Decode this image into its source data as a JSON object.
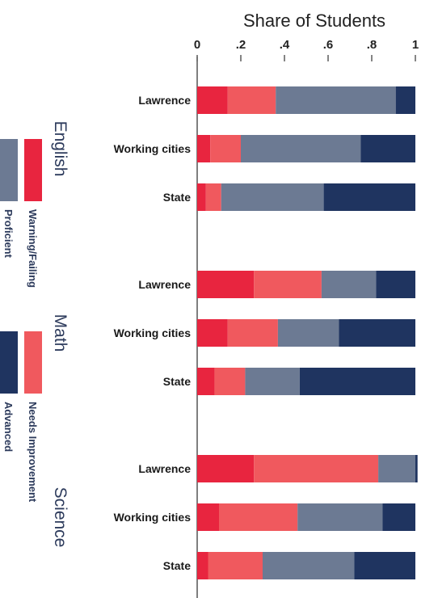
{
  "chart_data": {
    "type": "bar",
    "orientation": "horizontal",
    "stacked": true,
    "xlabel": "Share of Students",
    "xlim": [
      0,
      1
    ],
    "xticks": [
      "0",
      ".2",
      ".4",
      ".6",
      ".8",
      "1"
    ],
    "colors": {
      "Warning/Failing": "#e8253f",
      "Needs Improvement": "#f0595e",
      "Proficient": "#6c7a93",
      "Advanced": "#1f3460"
    },
    "groups": [
      {
        "name": "English",
        "categories": [
          "Lawrence",
          "Working cities",
          "State"
        ],
        "series": [
          {
            "name": "Warning/Failing",
            "values": [
              0.14,
              0.06,
              0.04
            ]
          },
          {
            "name": "Needs Improvement",
            "values": [
              0.22,
              0.14,
              0.07
            ]
          },
          {
            "name": "Proficient",
            "values": [
              0.55,
              0.55,
              0.47
            ]
          },
          {
            "name": "Advanced",
            "values": [
              0.09,
              0.25,
              0.42
            ]
          }
        ]
      },
      {
        "name": "Math",
        "categories": [
          "Lawrence",
          "Working cities",
          "State"
        ],
        "series": [
          {
            "name": "Warning/Failing",
            "values": [
              0.26,
              0.14,
              0.08
            ]
          },
          {
            "name": "Needs Improvement",
            "values": [
              0.31,
              0.23,
              0.14
            ]
          },
          {
            "name": "Proficient",
            "values": [
              0.25,
              0.28,
              0.25
            ]
          },
          {
            "name": "Advanced",
            "values": [
              0.18,
              0.35,
              0.53
            ]
          }
        ]
      },
      {
        "name": "Science",
        "categories": [
          "Lawrence",
          "Working cities",
          "State"
        ],
        "series": [
          {
            "name": "Warning/Failing",
            "values": [
              0.26,
              0.1,
              0.05
            ]
          },
          {
            "name": "Needs Improvement",
            "values": [
              0.57,
              0.36,
              0.25
            ]
          },
          {
            "name": "Proficient",
            "values": [
              0.17,
              0.39,
              0.42
            ]
          },
          {
            "name": "Advanced",
            "values": [
              0.01,
              0.15,
              0.28
            ]
          }
        ]
      }
    ],
    "legend": {
      "placement": "left",
      "entries": [
        "Warning/Failing",
        "Proficient",
        "Needs Improvement",
        "Advanced"
      ]
    }
  }
}
